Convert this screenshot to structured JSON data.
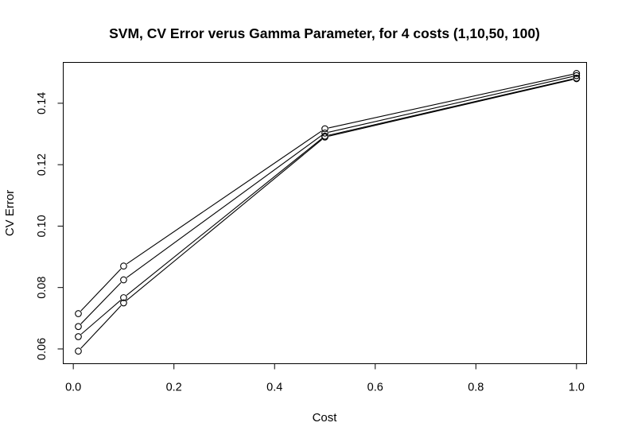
{
  "chart_data": {
    "type": "line",
    "title": "SVM, CV Error verus Gamma Parameter, for 4 costs (1,10,50, 100)",
    "xlabel": "Cost",
    "ylabel": "CV Error",
    "x": [
      0.01,
      0.1,
      0.5,
      1.0
    ],
    "series": [
      {
        "values": [
          0.0715,
          0.087,
          0.1317,
          0.1497
        ]
      },
      {
        "values": [
          0.0673,
          0.0825,
          0.1303,
          0.149
        ]
      },
      {
        "values": [
          0.064,
          0.0767,
          0.1293,
          0.1482
        ]
      },
      {
        "values": [
          0.0593,
          0.075,
          0.129,
          0.148
        ]
      }
    ],
    "xlim": [
      -0.02,
      1.02
    ],
    "ylim": [
      0.0552,
      0.1533
    ],
    "xticks": [
      0.0,
      0.2,
      0.4,
      0.6,
      0.8,
      1.0
    ],
    "xtick_labels": [
      "0.0",
      "0.2",
      "0.4",
      "0.6",
      "0.8",
      "1.0"
    ],
    "yticks": [
      0.06,
      0.08,
      0.1,
      0.12,
      0.14
    ],
    "ytick_labels": [
      "0.06",
      "0.08",
      "0.10",
      "0.12",
      "0.14"
    ],
    "marker": "open-circle",
    "line_color": "#000000",
    "grid": false,
    "legend": "none"
  }
}
